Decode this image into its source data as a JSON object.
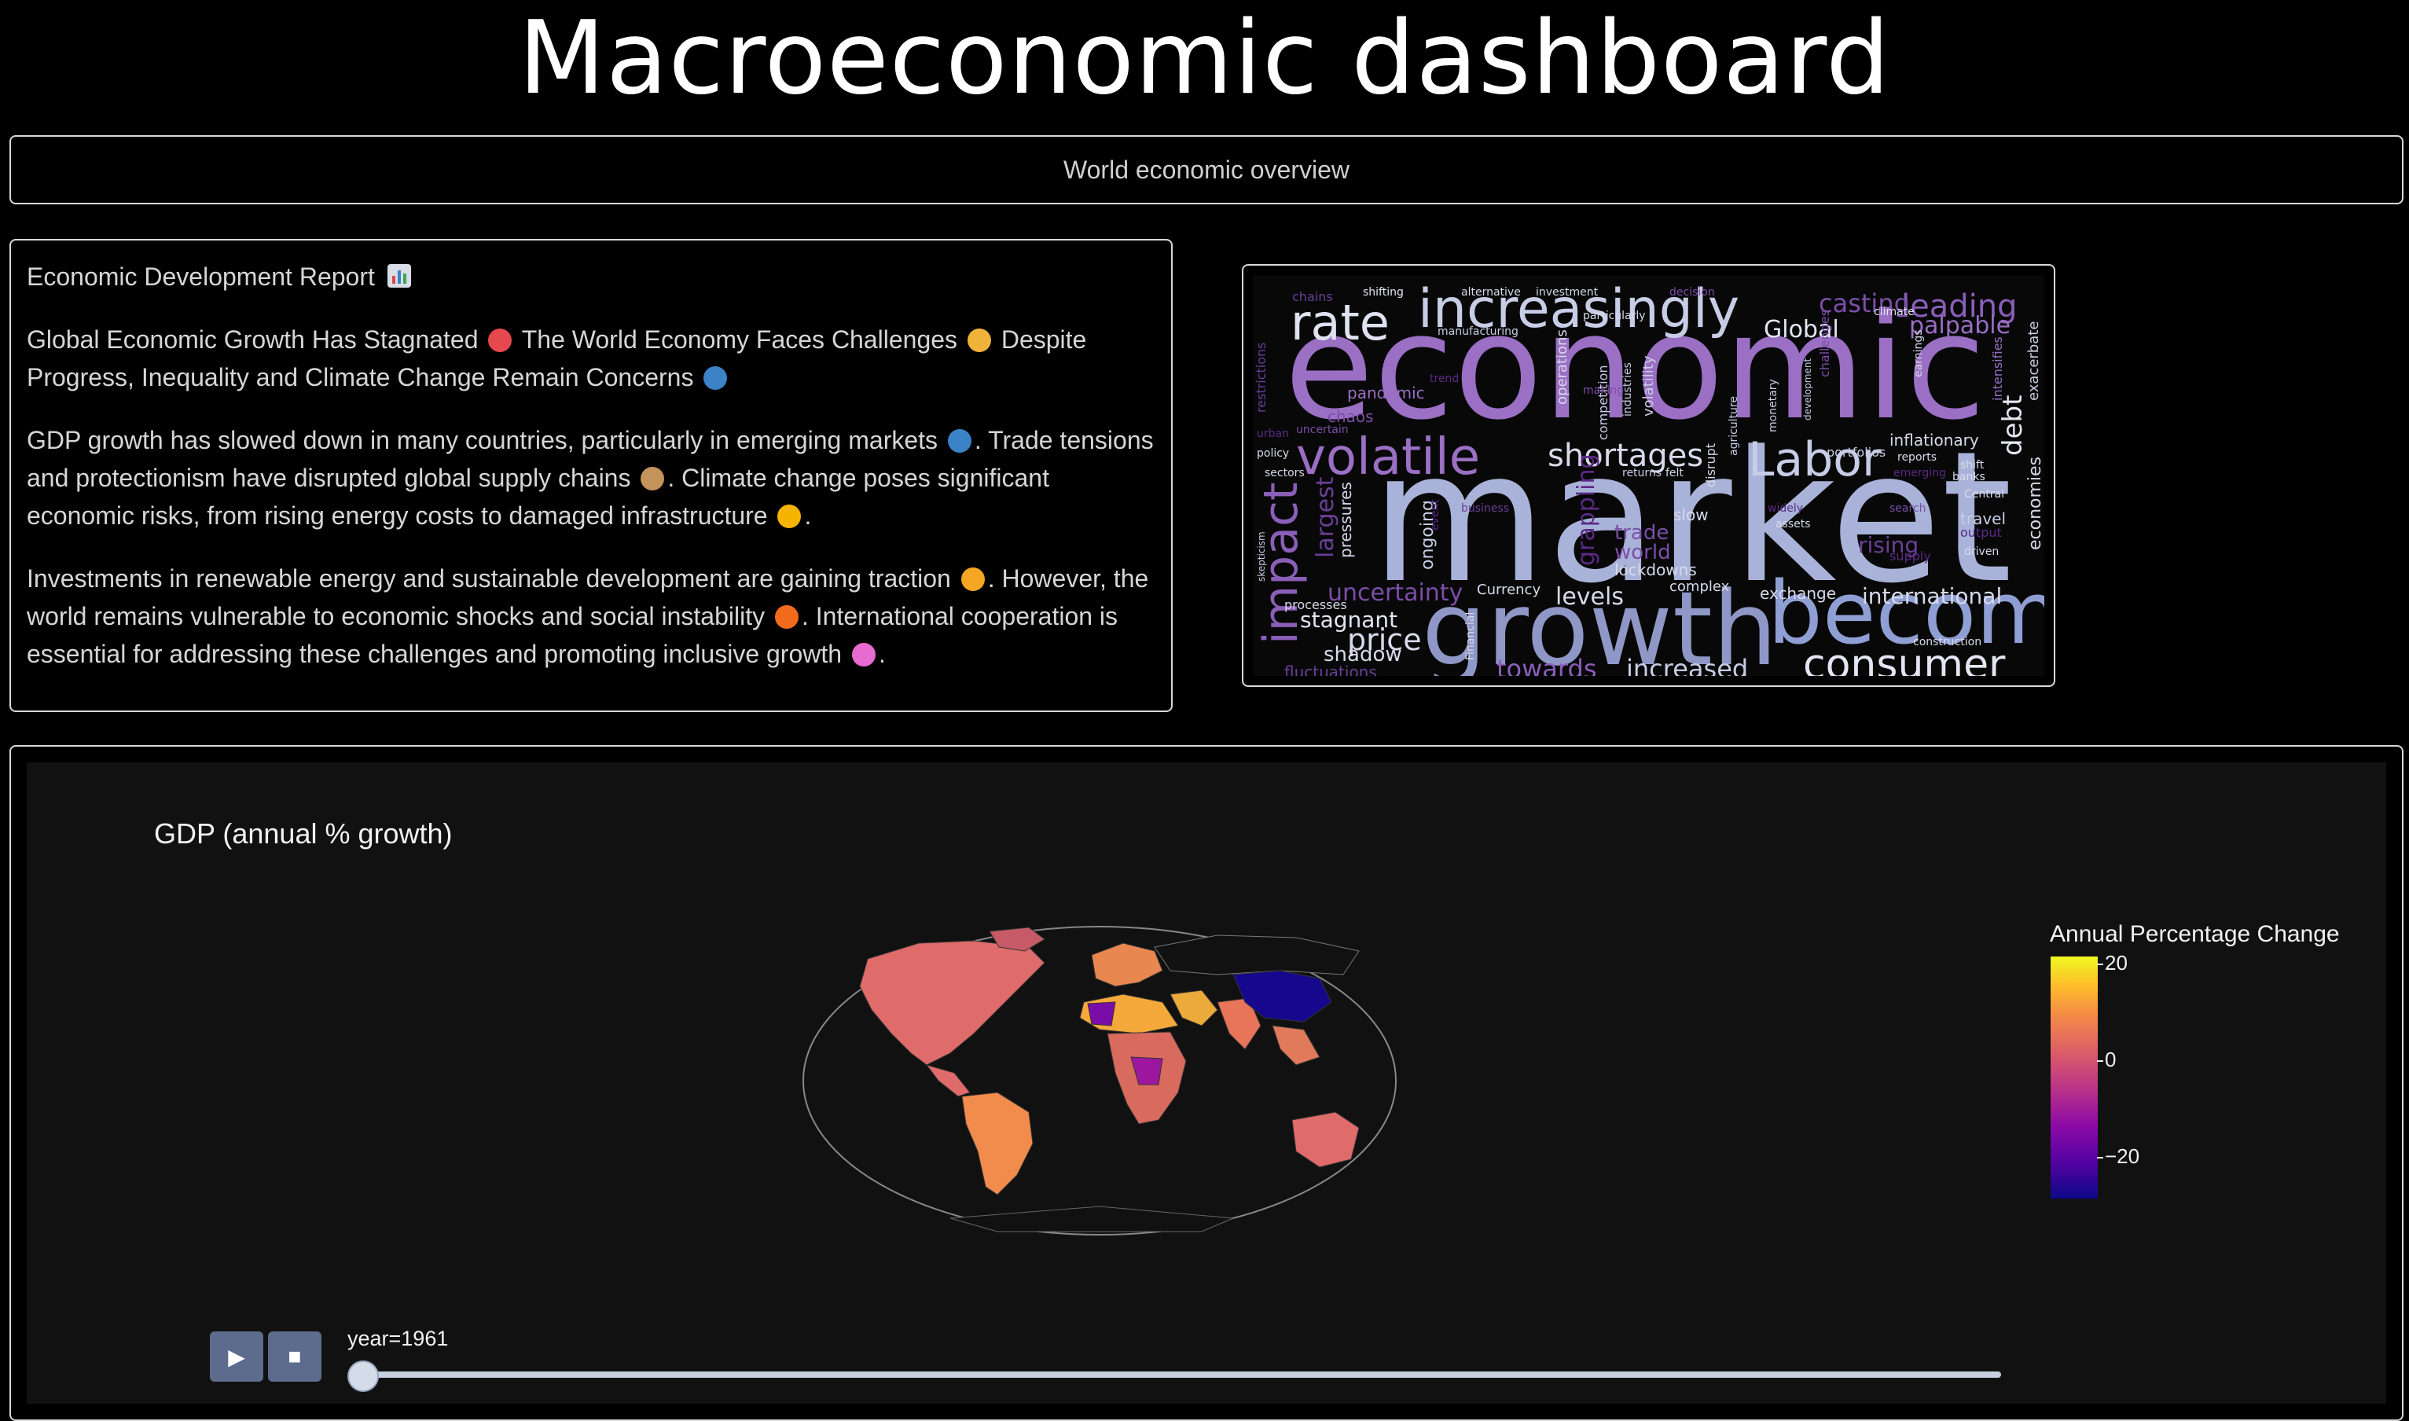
{
  "header": {
    "title": "Macroeconomic dashboard",
    "subtitle": "World economic overview"
  },
  "report": {
    "heading": "Economic Development Report",
    "heading_icon": "bar-chart-emoji",
    "paragraphs": [
      {
        "parts": [
          {
            "text": "Global Economic Growth Has Stagnated"
          },
          {
            "icon": "prohibited-emoji",
            "color": "#e5484d"
          },
          {
            "text": "The World Economy Faces Challenges"
          },
          {
            "icon": "flexed-biceps-emoji",
            "color": "#f0b33a"
          },
          {
            "text": "Despite Progress, Inequality and Climate Change Remain Concerns"
          },
          {
            "icon": "globe-emoji",
            "color": "#3b82c6"
          }
        ]
      },
      {
        "parts": [
          {
            "text": "GDP growth has slowed down in many countries, particularly in emerging markets"
          },
          {
            "icon": "globe-emoji",
            "color": "#3b82c6"
          },
          {
            "text": ". Trade tensions and protectionism have disrupted global supply chains"
          },
          {
            "icon": "package-emoji",
            "color": "#c4935b"
          },
          {
            "text": ". Climate change poses significant economic risks, from rising energy costs to damaged infrastructure"
          },
          {
            "icon": "sun-emoji",
            "color": "#f4b400"
          },
          {
            "text": "."
          }
        ]
      },
      {
        "parts": [
          {
            "text": "Investments in renewable energy and sustainable development are gaining traction"
          },
          {
            "icon": "lightning-emoji",
            "color": "#f5a623"
          },
          {
            "text": ". However, the world remains vulnerable to economic shocks and social instability"
          },
          {
            "icon": "fire-emoji",
            "color": "#f26b1d"
          },
          {
            "text": ". International cooperation is essential for addressing these challenges and promoting inclusive growth"
          },
          {
            "icon": "rainbow-emoji",
            "color": "#e86bd1"
          },
          {
            "text": "."
          }
        ]
      }
    ]
  },
  "wordcloud": {
    "words": [
      "economic",
      "market",
      "growth",
      "become",
      "increasingly",
      "rate",
      "volatile",
      "shortages",
      "Labor",
      "impact",
      "price",
      "uncertainty",
      "levels",
      "consumer",
      "towards",
      "increased",
      "international",
      "exchange",
      "leading",
      "palpable",
      "casting",
      "Global",
      "debt",
      "stagnant",
      "shadow",
      "fluctuations",
      "trade",
      "world",
      "lockdowns",
      "complex",
      "slow",
      "rising",
      "travel",
      "economies",
      "exacerbate",
      "inflationary",
      "pandemic",
      "chaos",
      "largest",
      "pressures",
      "ongoing",
      "grappling",
      "volatility",
      "competition",
      "operations",
      "manufacturing",
      "alternative",
      "investment",
      "shifting",
      "chains",
      "restrictions",
      "policy",
      "sectors",
      "processes",
      "Currency",
      "skepticism",
      "Financial",
      "disrupt",
      "agriculture",
      "monetary",
      "development",
      "challenges",
      "climate",
      "earnings",
      "intensifies",
      "portfolios",
      "reports",
      "output",
      "driven",
      "Central",
      "assets",
      "business",
      "decision",
      "particularly",
      "industries",
      "search",
      "supply",
      "construction",
      "shift",
      "banks",
      "making",
      "uncertain",
      "urban",
      "emerging",
      "returns",
      "felt",
      "trend",
      "event",
      "widely"
    ]
  },
  "chart": {
    "title": "GDP (annual % growth)",
    "legend_title": "Annual Percentage Change",
    "ticks": [
      "20",
      "0",
      "−20"
    ],
    "slider_label": "year=1961",
    "play_icon": "play-icon",
    "stop_icon": "stop-icon",
    "colorscale": [
      "#0d0887",
      "#5402a3",
      "#8b0aa5",
      "#b93289",
      "#db5c68",
      "#f48849",
      "#febd2a",
      "#f0f921"
    ]
  },
  "chart_data": {
    "type": "choropleth",
    "title": "GDP (annual % growth)",
    "colorbar_title": "Annual Percentage Change",
    "colorbar_ticks": [
      20,
      0,
      -20
    ],
    "animation_frame": "year",
    "current_frame": 1961,
    "projection": "natural earth"
  }
}
